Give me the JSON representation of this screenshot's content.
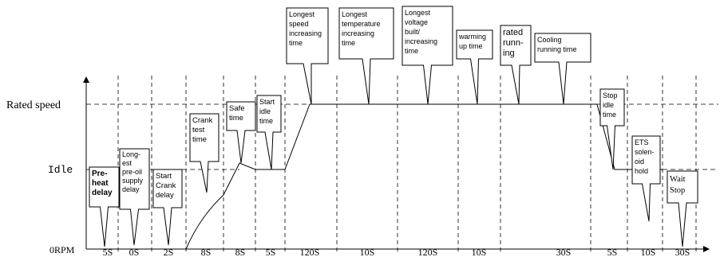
{
  "axis": {
    "y_labels": {
      "rated": "Rated speed",
      "idle": "Idle",
      "zero": "0RPM"
    }
  },
  "durations": [
    "5S",
    "0S",
    "2S",
    "8S",
    "8S",
    "5S",
    "120S",
    "10S",
    "120S",
    "10S",
    "30S",
    "5S",
    "10S",
    "30S"
  ],
  "callouts": {
    "preheat": [
      "Pre-",
      "heat",
      "delay"
    ],
    "preoil": [
      "Long-",
      "est",
      "pre-oil",
      "supply",
      "delay"
    ],
    "start_crank": [
      "Start",
      "Crank",
      "delay"
    ],
    "crank_test": [
      "Crank",
      "test",
      "time"
    ],
    "safe": [
      "Safe",
      "time"
    ],
    "start_idle": [
      "Start",
      "idle",
      "time"
    ],
    "speed_inc": [
      "Longest",
      "speed",
      "increasing",
      "time"
    ],
    "temp_inc": [
      "Longest",
      "temperature",
      "increasing",
      "time"
    ],
    "voltage": [
      "Longest",
      "voltage",
      "built/",
      "increasing",
      "time"
    ],
    "warming": [
      "warming",
      "up time"
    ],
    "rated_running": [
      "rated",
      "runn-",
      "ing"
    ],
    "cooling": [
      "Cooling",
      "running time"
    ],
    "stop_idle": [
      "Stop",
      "idle",
      "time"
    ],
    "ets": [
      "ETS",
      "solen-",
      "oid",
      "hold"
    ],
    "wait_stop": [
      "Wait",
      "Stop"
    ]
  }
}
